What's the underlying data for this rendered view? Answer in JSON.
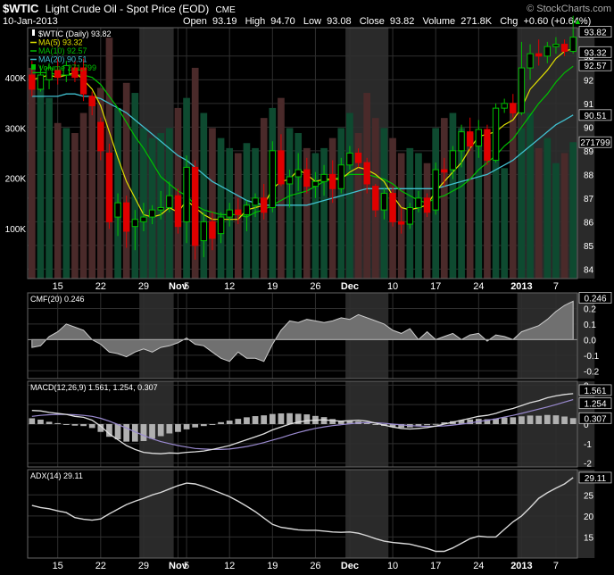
{
  "header": {
    "symbol": "$WTIC",
    "name": "Light Crude Oil - Spot Price (EOD)",
    "exchange": "CME",
    "watermark": "© StockCharts.com",
    "date": "10-Jan-2013",
    "open_label": "Open",
    "open": "93.19",
    "high_label": "High",
    "high": "94.70",
    "low_label": "Low",
    "low": "93.08",
    "close_label": "Close",
    "close": "93.82",
    "volume_label": "Volume",
    "volume": "271.8K",
    "chg_label": "Chg",
    "chg": "+0.60 (+0.64%)",
    "chg_arrow": "▲"
  },
  "legend": {
    "price": "$WTIC (Daily) 93.82",
    "ma5": "MA(5) 93.32",
    "ma10": "MA(10) 92.57",
    "ma20": "MA(20) 90.51",
    "volume": "Volume 271,799"
  },
  "price_badges": [
    "93.82",
    "93.32",
    "92.57",
    "90.51"
  ],
  "volume_badge": "271799",
  "cmf_legend": "CMF(20) 0.246",
  "cmf_badge": "0.246",
  "macd_legend": "MACD(12,26,9) 1.561, 1.254, 0.307",
  "macd_badges": [
    "1.561",
    "1.254",
    "0.307"
  ],
  "adx_legend": "ADX(14) 29.11",
  "adx_badge": "29.11",
  "colors": {
    "background": "#000000",
    "up_candle": "#00c000",
    "down_candle": "#e00000",
    "ma5": "#e0e000",
    "ma10": "#00c000",
    "ma20": "#40c0d0",
    "volume_up": "#0e4a30",
    "volume_down": "#4a2a2a",
    "month_band": "#2a2a2a",
    "grid": "#2f2f2f",
    "indicator_fill": "#707070",
    "macd_signal": "#9a8ad0"
  },
  "chart_data": {
    "type": "candlestick",
    "title": "$WTIC Light Crude Oil - Spot Price (EOD)",
    "x_tick_labels": [
      "15",
      "22",
      "29",
      "Nov",
      "5",
      "12",
      "19",
      "26",
      "Dec",
      "10",
      "17",
      "24",
      "2013",
      "7"
    ],
    "x_tick_index": [
      3,
      8,
      13,
      17,
      18,
      23,
      28,
      33,
      37,
      42,
      47,
      52,
      57,
      61
    ],
    "month_band_ranges": [
      [
        13,
        17
      ],
      [
        37,
        42
      ],
      [
        57,
        66
      ]
    ],
    "price_axis": {
      "ylim": [
        83.6,
        94.2
      ],
      "ticks": [
        84,
        85,
        86,
        87,
        88,
        89,
        90,
        91,
        92,
        93
      ]
    },
    "volume_axis": {
      "max": 500000,
      "labels": [
        "100K",
        "200K",
        "300K",
        "400K"
      ],
      "ticks": [
        100000,
        200000,
        300000,
        400000
      ]
    },
    "candles": [
      [
        92.2,
        92.8,
        91.3,
        91.6
      ],
      [
        91.6,
        92.6,
        91.5,
        92.2
      ],
      [
        92.0,
        92.7,
        91.6,
        92.5
      ],
      [
        92.4,
        92.9,
        91.8,
        92.1
      ],
      [
        92.2,
        92.8,
        91.9,
        92.6
      ],
      [
        92.5,
        92.8,
        91.9,
        92.1
      ],
      [
        92.5,
        92.9,
        91.1,
        91.4
      ],
      [
        91.3,
        91.5,
        90.5,
        90.9
      ],
      [
        90.2,
        90.4,
        88.6,
        89.0
      ],
      [
        88.9,
        89.3,
        85.7,
        86.0
      ],
      [
        86.2,
        87.2,
        85.4,
        86.8
      ],
      [
        86.8,
        87.1,
        84.9,
        85.6
      ],
      [
        85.8,
        86.5,
        84.8,
        86.1
      ],
      [
        86.0,
        86.8,
        85.6,
        86.2
      ],
      [
        86.2,
        86.7,
        85.9,
        86.5
      ],
      [
        86.5,
        87.3,
        86.1,
        86.6
      ],
      [
        86.6,
        87.7,
        86.4,
        87.1
      ],
      [
        87.1,
        87.4,
        85.5,
        85.8
      ],
      [
        86.0,
        88.8,
        85.1,
        88.3
      ],
      [
        88.3,
        88.6,
        84.4,
        85.0
      ],
      [
        85.2,
        86.4,
        84.5,
        86.0
      ],
      [
        86.0,
        86.4,
        84.8,
        85.3
      ],
      [
        85.5,
        86.4,
        85.1,
        86.2
      ],
      [
        86.2,
        86.8,
        85.8,
        86.5
      ],
      [
        86.5,
        87.0,
        85.9,
        86.3
      ],
      [
        86.3,
        86.9,
        85.6,
        86.7
      ],
      [
        86.7,
        87.2,
        86.2,
        87.0
      ],
      [
        87.0,
        87.6,
        86.1,
        86.4
      ],
      [
        86.6,
        89.4,
        86.4,
        89.0
      ],
      [
        89.0,
        89.7,
        87.5,
        87.6
      ],
      [
        87.6,
        88.2,
        86.6,
        87.9
      ],
      [
        87.9,
        88.9,
        87.3,
        88.2
      ],
      [
        88.2,
        88.7,
        87.2,
        87.5
      ],
      [
        87.5,
        88.1,
        87.0,
        87.7
      ],
      [
        87.7,
        88.4,
        87.1,
        88.0
      ],
      [
        88.0,
        88.6,
        86.8,
        87.4
      ],
      [
        87.4,
        88.7,
        87.2,
        88.4
      ],
      [
        88.4,
        89.2,
        88.2,
        88.9
      ],
      [
        88.9,
        89.1,
        88.3,
        88.5
      ],
      [
        88.5,
        88.7,
        87.2,
        87.6
      ],
      [
        87.5,
        87.6,
        86.2,
        86.5
      ],
      [
        86.5,
        87.4,
        86.1,
        87.2
      ],
      [
        87.2,
        87.5,
        85.8,
        86.0
      ],
      [
        86.0,
        86.6,
        85.5,
        85.9
      ],
      [
        85.9,
        86.8,
        85.7,
        86.6
      ],
      [
        86.6,
        87.3,
        86.4,
        87.0
      ],
      [
        87.0,
        87.2,
        86.2,
        86.4
      ],
      [
        86.5,
        88.5,
        86.3,
        88.2
      ],
      [
        88.2,
        88.7,
        87.5,
        88.1
      ],
      [
        88.2,
        89.2,
        87.8,
        89.0
      ],
      [
        89.0,
        90.1,
        88.3,
        89.8
      ],
      [
        89.8,
        90.4,
        89.0,
        89.2
      ],
      [
        89.2,
        90.3,
        88.7,
        89.9
      ],
      [
        89.9,
        90.1,
        88.4,
        88.6
      ],
      [
        88.6,
        91.0,
        88.5,
        90.8
      ],
      [
        90.8,
        91.2,
        90.6,
        91.0
      ],
      [
        91.0,
        91.4,
        90.4,
        90.6
      ],
      [
        90.6,
        93.6,
        90.5,
        92.5
      ],
      [
        92.5,
        93.5,
        92.0,
        93.1
      ],
      [
        93.1,
        93.7,
        92.6,
        93.0
      ],
      [
        93.0,
        93.6,
        92.7,
        93.4
      ],
      [
        93.4,
        93.8,
        93.1,
        93.5
      ],
      [
        93.5,
        93.7,
        93.0,
        93.2
      ],
      [
        93.2,
        94.7,
        93.1,
        93.8
      ]
    ],
    "volume": [
      420000,
      380000,
      360000,
      310000,
      300000,
      290000,
      330000,
      360000,
      380000,
      480000,
      340000,
      390000,
      370000,
      300000,
      280000,
      290000,
      300000,
      340000,
      360000,
      420000,
      330000,
      300000,
      280000,
      260000,
      250000,
      270000,
      260000,
      320000,
      340000,
      360000,
      300000,
      290000,
      260000,
      250000,
      260000,
      280000,
      300000,
      330000,
      290000,
      370000,
      320000,
      300000,
      280000,
      250000,
      260000,
      250000,
      230000,
      300000,
      320000,
      330000,
      300000,
      290000,
      270000,
      280000,
      240000,
      220000,
      350000,
      300000,
      330000,
      260000,
      280000,
      230000,
      250000,
      271799
    ],
    "ma5": [
      92.0,
      92.1,
      92.2,
      92.1,
      92.2,
      92.3,
      92.0,
      91.6,
      90.9,
      89.8,
      88.7,
      87.7,
      87.0,
      86.3,
      86.2,
      86.3,
      86.6,
      86.4,
      86.9,
      86.6,
      86.3,
      86.1,
      86.1,
      86.1,
      86.1,
      86.5,
      86.6,
      86.7,
      87.4,
      87.7,
      87.8,
      88.2,
      88.0,
      87.7,
      87.8,
      87.8,
      87.8,
      88.1,
      88.3,
      88.2,
      88.0,
      87.7,
      87.1,
      86.6,
      86.5,
      86.6,
      86.7,
      87.3,
      87.7,
      88.1,
      88.5,
      89.1,
      89.6,
      89.7,
      89.8,
      90.1,
      90.3,
      90.8,
      91.6,
      92.0,
      92.4,
      92.9,
      93.2,
      93.32
    ],
    "ma10": [
      92.3,
      92.3,
      92.3,
      92.2,
      92.2,
      92.2,
      92.2,
      92.1,
      91.8,
      91.3,
      90.8,
      90.2,
      89.6,
      89.1,
      88.5,
      87.9,
      87.6,
      87.3,
      87.1,
      86.7,
      86.5,
      86.4,
      86.3,
      86.3,
      86.3,
      86.2,
      86.4,
      86.5,
      86.7,
      86.9,
      87.1,
      87.2,
      87.3,
      87.5,
      87.7,
      87.8,
      87.9,
      88.0,
      88.0,
      88.0,
      87.9,
      87.8,
      87.6,
      87.3,
      87.1,
      86.9,
      86.8,
      87.0,
      87.1,
      87.3,
      87.5,
      87.8,
      88.2,
      88.5,
      88.8,
      89.2,
      89.5,
      90.0,
      90.5,
      91.0,
      91.4,
      91.9,
      92.3,
      92.57
    ],
    "ma20": [
      91.3,
      91.3,
      91.3,
      91.3,
      91.4,
      91.4,
      91.3,
      91.3,
      91.2,
      91.0,
      90.8,
      90.6,
      90.3,
      90.0,
      89.7,
      89.4,
      89.1,
      88.8,
      88.6,
      88.3,
      88.0,
      87.7,
      87.5,
      87.3,
      87.1,
      86.9,
      86.8,
      86.7,
      86.7,
      86.7,
      86.7,
      86.7,
      86.7,
      86.8,
      86.9,
      87.0,
      87.1,
      87.2,
      87.3,
      87.4,
      87.4,
      87.4,
      87.4,
      87.4,
      87.4,
      87.4,
      87.4,
      87.4,
      87.5,
      87.6,
      87.7,
      87.8,
      87.9,
      88.0,
      88.2,
      88.4,
      88.6,
      88.9,
      89.2,
      89.5,
      89.8,
      90.1,
      90.3,
      90.51
    ],
    "cmf": {
      "ylim": [
        -0.25,
        0.3
      ],
      "ticks": [
        0.2,
        0.1,
        0.0,
        -0.1,
        -0.2
      ],
      "values": [
        -0.05,
        -0.04,
        0.02,
        0.05,
        0.1,
        0.08,
        0.06,
        0.0,
        -0.03,
        -0.08,
        -0.09,
        -0.11,
        -0.08,
        -0.06,
        -0.08,
        -0.05,
        -0.04,
        -0.02,
        0.01,
        -0.03,
        -0.04,
        -0.08,
        -0.12,
        -0.14,
        -0.08,
        -0.12,
        -0.12,
        -0.14,
        -0.03,
        0.06,
        0.12,
        0.11,
        0.13,
        0.12,
        0.11,
        0.12,
        0.14,
        0.13,
        0.16,
        0.14,
        0.12,
        0.1,
        0.06,
        0.04,
        0.07,
        0.0,
        0.05,
        0.0,
        0.02,
        0.04,
        0.0,
        0.03,
        0.04,
        -0.01,
        0.03,
        0.02,
        0.0,
        0.05,
        0.07,
        0.09,
        0.13,
        0.18,
        0.22,
        0.246
      ]
    },
    "macd": {
      "ylim": [
        -2.2,
        2.2
      ],
      "ticks": [
        2,
        1,
        0,
        -1,
        -2
      ],
      "macd": [
        0.7,
        0.68,
        0.6,
        0.55,
        0.5,
        0.4,
        0.35,
        0.2,
        -0.1,
        -0.5,
        -0.8,
        -1.1,
        -1.3,
        -1.45,
        -1.5,
        -1.52,
        -1.48,
        -1.5,
        -1.45,
        -1.42,
        -1.38,
        -1.3,
        -1.2,
        -1.1,
        -0.95,
        -0.8,
        -0.65,
        -0.5,
        -0.3,
        -0.15,
        0.0,
        0.1,
        0.18,
        0.2,
        0.22,
        0.18,
        0.15,
        0.18,
        0.2,
        0.15,
        0.05,
        -0.05,
        -0.15,
        -0.22,
        -0.25,
        -0.22,
        -0.18,
        -0.1,
        0.0,
        0.1,
        0.2,
        0.3,
        0.4,
        0.45,
        0.55,
        0.7,
        0.8,
        0.95,
        1.1,
        1.2,
        1.35,
        1.45,
        1.52,
        1.561
      ],
      "signal": [
        0.4,
        0.45,
        0.48,
        0.5,
        0.5,
        0.48,
        0.45,
        0.4,
        0.3,
        0.15,
        -0.02,
        -0.2,
        -0.4,
        -0.58,
        -0.75,
        -0.9,
        -1.0,
        -1.1,
        -1.18,
        -1.25,
        -1.28,
        -1.3,
        -1.3,
        -1.28,
        -1.22,
        -1.15,
        -1.06,
        -0.95,
        -0.82,
        -0.7,
        -0.56,
        -0.43,
        -0.32,
        -0.22,
        -0.14,
        -0.08,
        -0.03,
        0.02,
        0.06,
        0.08,
        0.07,
        0.04,
        0.0,
        -0.04,
        -0.08,
        -0.1,
        -0.12,
        -0.11,
        -0.09,
        -0.05,
        0.0,
        0.06,
        0.13,
        0.2,
        0.27,
        0.36,
        0.45,
        0.55,
        0.66,
        0.77,
        0.88,
        1.0,
        1.13,
        1.254
      ],
      "histogram": [
        0.3,
        0.23,
        0.12,
        0.05,
        0.0,
        -0.08,
        -0.1,
        -0.2,
        -0.4,
        -0.65,
        -0.78,
        -0.9,
        -0.9,
        -0.87,
        -0.75,
        -0.62,
        -0.48,
        -0.4,
        -0.27,
        -0.17,
        -0.1,
        0.0,
        0.1,
        0.18,
        0.27,
        0.35,
        0.41,
        0.45,
        0.52,
        0.55,
        0.56,
        0.53,
        0.5,
        0.42,
        0.36,
        0.26,
        0.18,
        0.16,
        0.14,
        0.07,
        -0.02,
        -0.09,
        -0.15,
        -0.18,
        -0.17,
        -0.12,
        -0.06,
        0.01,
        0.09,
        0.15,
        0.2,
        0.24,
        0.27,
        0.25,
        0.28,
        0.34,
        0.35,
        0.4,
        0.44,
        0.43,
        0.47,
        0.45,
        0.39,
        0.307
      ]
    },
    "adx": {
      "ylim": [
        10,
        31
      ],
      "ticks": [
        25,
        20,
        15
      ],
      "values": [
        22.5,
        22.0,
        21.7,
        21.2,
        20.8,
        19.6,
        19.2,
        19.0,
        19.3,
        20.5,
        21.6,
        22.7,
        23.5,
        24.2,
        25.0,
        25.6,
        26.4,
        27.2,
        27.8,
        27.6,
        27.0,
        26.2,
        25.4,
        24.6,
        23.5,
        22.3,
        21.0,
        19.5,
        18.0,
        17.3,
        17.0,
        16.7,
        16.6,
        16.6,
        16.4,
        16.2,
        16.1,
        16.2,
        15.9,
        15.3,
        14.6,
        14.0,
        13.7,
        13.5,
        13.3,
        12.8,
        12.3,
        11.6,
        11.6,
        12.4,
        13.5,
        14.6,
        15.2,
        15.0,
        15.0,
        16.8,
        18.6,
        20.0,
        22.0,
        24.2,
        25.5,
        26.6,
        27.6,
        29.11
      ]
    }
  }
}
